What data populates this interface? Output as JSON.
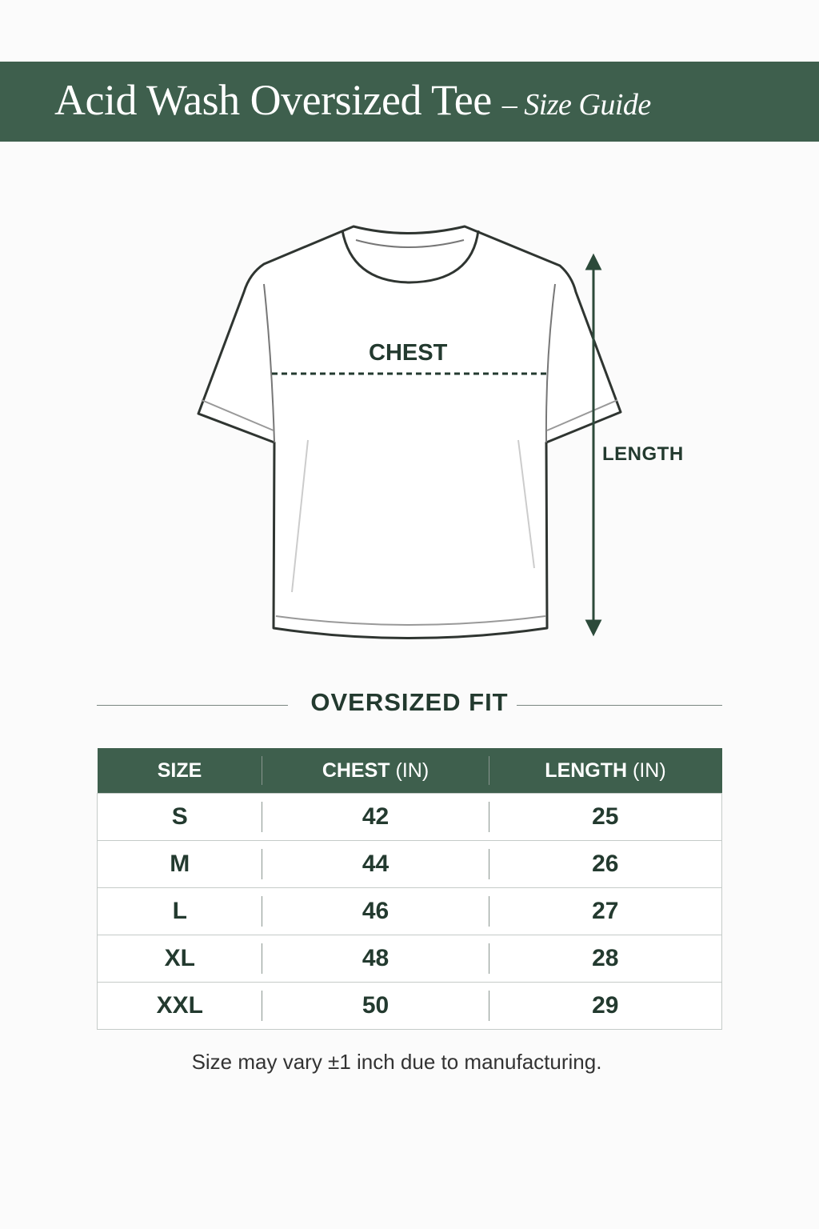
{
  "header": {
    "title": "Acid Wash Oversized Tee",
    "subtitle": "– Size Guide"
  },
  "diagram": {
    "chest_label": "CHEST",
    "length_label": "LENGTH"
  },
  "section_title": "OVERSIZED FIT",
  "table": {
    "columns": [
      {
        "label": "SIZE",
        "unit": ""
      },
      {
        "label": "CHEST",
        "unit": "(IN)"
      },
      {
        "label": "LENGTH",
        "unit": "(IN)"
      }
    ],
    "rows": [
      [
        "S",
        "42",
        "25"
      ],
      [
        "M",
        "44",
        "26"
      ],
      [
        "L",
        "46",
        "27"
      ],
      [
        "XL",
        "48",
        "28"
      ],
      [
        "XXL",
        "50",
        "29"
      ]
    ]
  },
  "note": "Size may vary ±1 inch due to manufacturing.",
  "colors": {
    "brand": "#3e5f4d",
    "text": "#233a2f"
  }
}
